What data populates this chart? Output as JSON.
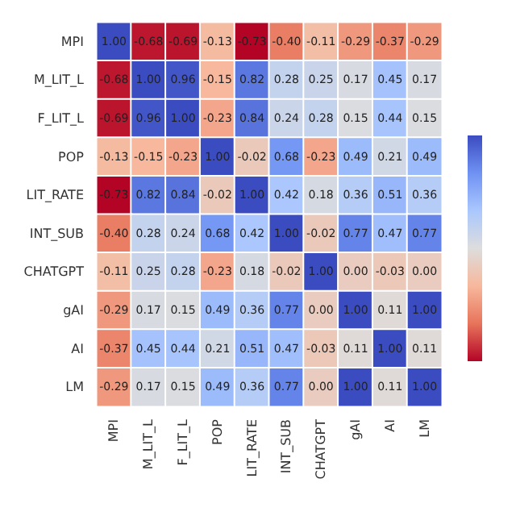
{
  "chart_data": {
    "type": "heatmap",
    "categories": [
      "MPI",
      "M_LIT_L",
      "F_LIT_L",
      "POP",
      "LIT_RATE",
      "INT_SUB",
      "CHATGPT",
      "gAI",
      "AI",
      "LM"
    ],
    "y_categories": [
      "MPI",
      "M_LIT_L",
      "F_LIT_L",
      "POP",
      "LIT_RATE",
      "INT_SUB",
      "CHATGPT",
      "gAI",
      "AI",
      "LM"
    ],
    "cells": [
      [
        1.0,
        -0.68,
        -0.69,
        -0.13,
        -0.73,
        -0.4,
        -0.11,
        -0.29,
        -0.37,
        -0.29
      ],
      [
        -0.68,
        1.0,
        0.96,
        -0.15,
        0.82,
        0.28,
        0.25,
        0.17,
        0.45,
        0.17
      ],
      [
        -0.69,
        0.96,
        1.0,
        -0.23,
        0.84,
        0.24,
        0.28,
        0.15,
        0.44,
        0.15
      ],
      [
        -0.13,
        -0.15,
        -0.23,
        1.0,
        -0.02,
        0.68,
        -0.23,
        0.49,
        0.21,
        0.49
      ],
      [
        -0.73,
        0.82,
        0.84,
        -0.02,
        1.0,
        0.42,
        0.18,
        0.36,
        0.51,
        0.36
      ],
      [
        -0.4,
        0.28,
        0.24,
        0.68,
        0.42,
        1.0,
        -0.02,
        0.77,
        0.47,
        0.77
      ],
      [
        -0.11,
        0.25,
        0.28,
        -0.23,
        0.18,
        -0.02,
        1.0,
        0.0,
        -0.03,
        0.0
      ],
      [
        -0.29,
        0.17,
        0.15,
        0.49,
        0.36,
        0.77,
        0.0,
        1.0,
        0.11,
        1.0
      ],
      [
        -0.37,
        0.45,
        0.44,
        0.21,
        0.51,
        0.47,
        -0.03,
        0.11,
        1.0,
        0.11
      ],
      [
        -0.29,
        0.17,
        0.15,
        0.49,
        0.36,
        0.77,
        0.0,
        1.0,
        0.11,
        1.0
      ]
    ],
    "cell_labels": [
      [
        "1.00",
        "-0.68",
        "-0.69",
        "-0.13",
        "-0.73",
        "-0.40",
        "-0.11",
        "-0.29",
        "-0.37",
        "-0.29"
      ],
      [
        "-0.68",
        "1.00",
        "0.96",
        "-0.15",
        "0.82",
        "0.28",
        "0.25",
        "0.17",
        "0.45",
        "0.17"
      ],
      [
        "-0.69",
        "0.96",
        "1.00",
        "-0.23",
        "0.84",
        "0.24",
        "0.28",
        "0.15",
        "0.44",
        "0.15"
      ],
      [
        "-0.13",
        "-0.15",
        "-0.23",
        "1.00",
        "-0.02",
        "0.68",
        "-0.23",
        "0.49",
        "0.21",
        "0.49"
      ],
      [
        "-0.73",
        "0.82",
        "0.84",
        "-0.02",
        "1.00",
        "0.42",
        "0.18",
        "0.36",
        "0.51",
        "0.36"
      ],
      [
        "-0.40",
        "0.28",
        "0.24",
        "0.68",
        "0.42",
        "1.00",
        "-0.02",
        "0.77",
        "0.47",
        "0.77"
      ],
      [
        "-0.11",
        "0.25",
        "0.28",
        "-0.23",
        "0.18",
        "-0.02",
        "1.00",
        "0.00",
        "-0.03",
        "0.00"
      ],
      [
        "-0.29",
        "0.17",
        "0.15",
        "0.49",
        "0.36",
        "0.77",
        "0.00",
        "1.00",
        "0.11",
        "1.00"
      ],
      [
        "-0.37",
        "0.45",
        "0.44",
        "0.21",
        "0.51",
        "0.47",
        "-0.03",
        "0.11",
        "1.00",
        "0.11"
      ],
      [
        "-0.29",
        "0.17",
        "0.15",
        "0.49",
        "0.36",
        "0.77",
        "0.00",
        "1.00",
        "0.11",
        "1.00"
      ]
    ]
  }
}
